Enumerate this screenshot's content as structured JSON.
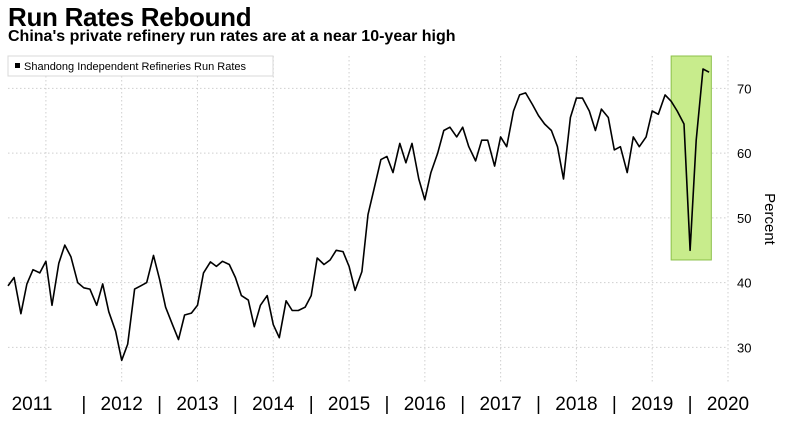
{
  "chart_data": {
    "type": "line",
    "title": "Run Rates Rebound",
    "subtitle": "China's private refinery run rates are at a near 10-year high",
    "ylabel": "Percent",
    "ylim": [
      24.5,
      75
    ],
    "yticks": [
      30,
      40,
      50,
      60,
      70
    ],
    "xlim": [
      2011.0,
      2020.5
    ],
    "xtick_labels": [
      "2011",
      "2012",
      "2013",
      "2014",
      "2015",
      "2016",
      "2017",
      "2018",
      "2019",
      "2020"
    ],
    "x_separator": "|",
    "grid": true,
    "legend_position": "top-left",
    "highlight": {
      "x_range": [
        2019.75,
        2020.28
      ],
      "y_range": [
        43.5,
        75
      ],
      "color": "#c8ec8c"
    },
    "series": [
      {
        "name": "Shandong Independent Refineries Run Rates",
        "color": "#000000",
        "x": [
          2011.0,
          2011.08,
          2011.17,
          2011.25,
          2011.33,
          2011.42,
          2011.5,
          2011.58,
          2011.67,
          2011.75,
          2011.83,
          2011.92,
          2012.0,
          2012.08,
          2012.17,
          2012.25,
          2012.33,
          2012.42,
          2012.5,
          2012.58,
          2012.67,
          2012.75,
          2012.83,
          2012.92,
          2013.0,
          2013.08,
          2013.17,
          2013.25,
          2013.33,
          2013.42,
          2013.5,
          2013.58,
          2013.67,
          2013.75,
          2013.83,
          2013.92,
          2014.0,
          2014.08,
          2014.17,
          2014.25,
          2014.33,
          2014.42,
          2014.5,
          2014.58,
          2014.67,
          2014.75,
          2014.83,
          2014.92,
          2015.0,
          2015.08,
          2015.17,
          2015.25,
          2015.33,
          2015.42,
          2015.5,
          2015.58,
          2015.67,
          2015.75,
          2015.83,
          2015.92,
          2016.0,
          2016.08,
          2016.17,
          2016.25,
          2016.33,
          2016.42,
          2016.5,
          2016.58,
          2016.67,
          2016.75,
          2016.83,
          2016.92,
          2017.0,
          2017.08,
          2017.17,
          2017.25,
          2017.33,
          2017.42,
          2017.5,
          2017.58,
          2017.67,
          2017.75,
          2017.83,
          2017.92,
          2018.0,
          2018.08,
          2018.17,
          2018.25,
          2018.33,
          2018.42,
          2018.5,
          2018.58,
          2018.67,
          2018.75,
          2018.83,
          2018.92,
          2019.0,
          2019.08,
          2019.17,
          2019.25,
          2019.33,
          2019.42,
          2019.5,
          2019.58,
          2019.67,
          2019.75,
          2019.83,
          2019.92,
          2020.0,
          2020.08,
          2020.17,
          2020.25
        ],
        "values": [
          39.5,
          40.8,
          35.2,
          39.8,
          42.0,
          41.5,
          43.3,
          36.5,
          43.0,
          45.8,
          44.0,
          40.0,
          39.2,
          39.0,
          36.5,
          39.8,
          35.5,
          32.5,
          28.0,
          30.5,
          39.0,
          39.5,
          40.0,
          44.2,
          40.5,
          36.2,
          33.5,
          31.2,
          35.0,
          35.3,
          36.5,
          41.5,
          43.2,
          42.5,
          43.3,
          42.8,
          40.8,
          38.0,
          37.3,
          33.2,
          36.5,
          38.0,
          33.5,
          31.5,
          37.2,
          35.7,
          35.7,
          36.2,
          38.0,
          43.8,
          42.8,
          43.5,
          45.0,
          44.8,
          42.5,
          38.8,
          41.7,
          50.5,
          54.5,
          59.0,
          59.5,
          57.0,
          61.5,
          58.5,
          61.5,
          56.0,
          52.8,
          57.0,
          60.0,
          63.5,
          64.0,
          62.5,
          64.0,
          61.0,
          58.8,
          62.0,
          62.0,
          58.0,
          62.5,
          61.0,
          66.5,
          69.0,
          69.3,
          67.5,
          65.8,
          64.5,
          63.5,
          61.0,
          56.0,
          65.5,
          68.5,
          68.5,
          66.5,
          63.5,
          66.8,
          65.5,
          60.5,
          61.0,
          57.0,
          62.5,
          61.0,
          62.5,
          66.5,
          66.0,
          69.0,
          68.0,
          66.5,
          64.5,
          45.0,
          62.0,
          73.0,
          72.5
        ]
      }
    ]
  }
}
